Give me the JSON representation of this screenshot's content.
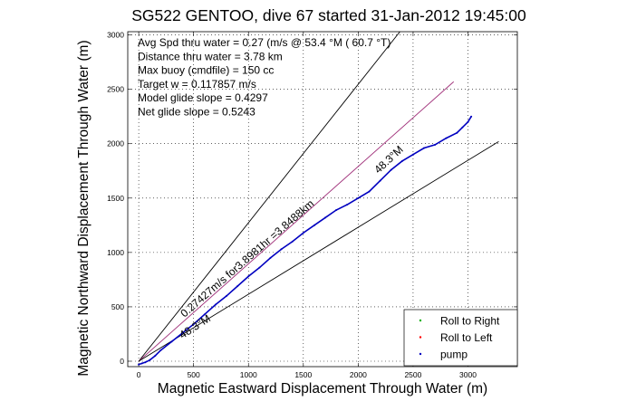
{
  "chart_data": {
    "type": "scatter",
    "title": "SG522 GENTOO, dive 67 started 31-Jan-2012 19:45:00",
    "xlabel": "Magnetic Eastward Displacement Through Water (m)",
    "ylabel": "Magnetic Northward Displacement Through Water (m)",
    "xlim": [
      -100,
      3450
    ],
    "ylim": [
      -50,
      3030
    ],
    "xticks": [
      0,
      500,
      1000,
      1500,
      2000,
      2500,
      3000
    ],
    "yticks": [
      0,
      500,
      1000,
      1500,
      2000,
      2500,
      3000
    ],
    "grid": true,
    "legend_position": "bottom-right",
    "stats_lines": [
      "Avg Spd thru water =  0.27 (m/s @  53.4   °M ( 60.7 °T)",
      "Distance thru water =  3.78 km",
      "Max buoy (cmdfile) = 150 cc",
      "Target w = 0.117857 m/s",
      "Model glide slope = 0.4297",
      "Net glide slope = 0.5243"
    ],
    "annotations": [
      {
        "text": "48.3°M",
        "x": 2300,
        "y": 1830,
        "angle": 43
      },
      {
        "text": "0.27427m/s for3.8981hr =3.8488km",
        "x": 1010,
        "y": 920,
        "angle": 41
      },
      {
        "text": "48.3°M",
        "x": 530,
        "y": 290,
        "angle": 33
      }
    ],
    "reference_lines": [
      {
        "name": "upper-envelope",
        "color": "#000000",
        "x": [
          0,
          2380
        ],
        "y": [
          0,
          3030
        ]
      },
      {
        "name": "heading-line",
        "color": "#a0307a",
        "x": [
          0,
          2870
        ],
        "y": [
          0,
          2570
        ]
      },
      {
        "name": "lower-envelope",
        "color": "#000000",
        "x": [
          0,
          3280
        ],
        "y": [
          0,
          2020
        ]
      }
    ],
    "series": [
      {
        "name": "Roll to Right",
        "color": "#00b000",
        "marker": "dot",
        "x": [],
        "y": []
      },
      {
        "name": "Roll to Left",
        "color": "#ff0000",
        "marker": "dot",
        "x": [],
        "y": []
      },
      {
        "name": "pump",
        "color": "#0000c0",
        "marker": "dot",
        "x": [
          0,
          30,
          60,
          100,
          150,
          200,
          300,
          400,
          500,
          600,
          700,
          800,
          900,
          1000,
          1100,
          1200,
          1300,
          1400,
          1500,
          1600,
          1700,
          1800,
          1900,
          2000,
          2100,
          2200,
          2300,
          2400,
          2500,
          2600,
          2700,
          2800,
          2900,
          2950,
          3000,
          3030
        ],
        "y": [
          -30,
          -20,
          -10,
          10,
          50,
          100,
          180,
          260,
          340,
          430,
          520,
          600,
          690,
          780,
          860,
          950,
          1030,
          1100,
          1180,
          1250,
          1320,
          1390,
          1440,
          1500,
          1560,
          1660,
          1760,
          1840,
          1900,
          1960,
          1990,
          2050,
          2100,
          2150,
          2200,
          2250
        ]
      }
    ]
  }
}
